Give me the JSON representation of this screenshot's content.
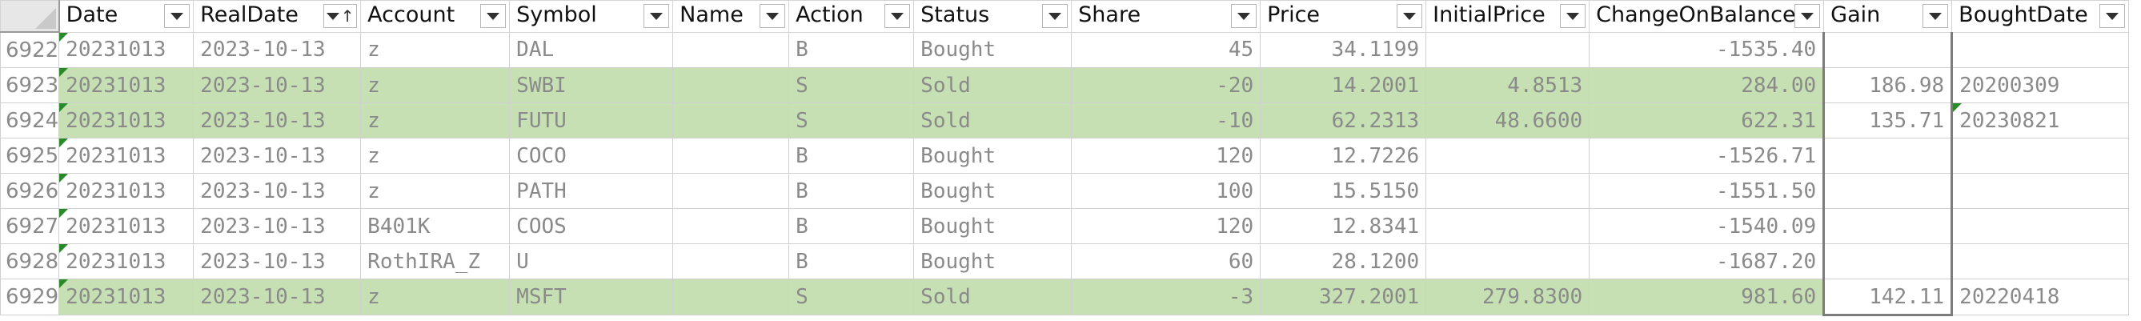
{
  "sheet": {
    "columns": [
      {
        "label": "Date",
        "sorted": false
      },
      {
        "label": "RealDate",
        "sorted": true
      },
      {
        "label": "Account",
        "sorted": false
      },
      {
        "label": "Symbol",
        "sorted": false
      },
      {
        "label": "Name",
        "sorted": false
      },
      {
        "label": "Action",
        "sorted": false
      },
      {
        "label": "Status",
        "sorted": false
      },
      {
        "label": "Share",
        "sorted": false
      },
      {
        "label": "Price",
        "sorted": false
      },
      {
        "label": "InitialPrice",
        "sorted": false
      },
      {
        "label": "ChangeOnBalance",
        "sorted": false
      },
      {
        "label": "Gain",
        "sorted": false
      },
      {
        "label": "BoughtDate",
        "sorted": false
      }
    ],
    "rows": [
      {
        "num": "6922",
        "type": "bought",
        "cells": [
          "20231013",
          "2023-10-13",
          "z",
          "DAL",
          "",
          "B",
          "Bought",
          "45",
          "34.1199",
          "",
          "-1535.40",
          "",
          ""
        ]
      },
      {
        "num": "6923",
        "type": "sold",
        "cells": [
          "20231013",
          "2023-10-13",
          "z",
          "SWBI",
          "",
          "S",
          "Sold",
          "-20",
          "14.2001",
          "4.8513",
          "284.00",
          "186.98",
          "20200309"
        ]
      },
      {
        "num": "6924",
        "type": "sold",
        "cells": [
          "20231013",
          "2023-10-13",
          "z",
          "FUTU",
          "",
          "S",
          "Sold",
          "-10",
          "62.2313",
          "48.6600",
          "622.31",
          "135.71",
          "20230821"
        ]
      },
      {
        "num": "6925",
        "type": "bought",
        "cells": [
          "20231013",
          "2023-10-13",
          "z",
          "COCO",
          "",
          "B",
          "Bought",
          "120",
          "12.7226",
          "",
          "-1526.71",
          "",
          ""
        ]
      },
      {
        "num": "6926",
        "type": "bought",
        "cells": [
          "20231013",
          "2023-10-13",
          "z",
          "PATH",
          "",
          "B",
          "Bought",
          "100",
          "15.5150",
          "",
          "-1551.50",
          "",
          ""
        ]
      },
      {
        "num": "6927",
        "type": "bought",
        "cells": [
          "20231013",
          "2023-10-13",
          "B401K",
          "COOS",
          "",
          "B",
          "Bought",
          "120",
          "12.8341",
          "",
          "-1540.09",
          "",
          ""
        ]
      },
      {
        "num": "6928",
        "type": "bought",
        "cells": [
          "20231013",
          "2023-10-13",
          "RothIRA_Z",
          "U",
          "",
          "B",
          "Bought",
          "60",
          "28.1200",
          "",
          "-1687.20",
          "",
          ""
        ]
      },
      {
        "num": "6929",
        "type": "sold",
        "cells": [
          "20231013",
          "2023-10-13",
          "z",
          "MSFT",
          "",
          "S",
          "Sold",
          "-3",
          "327.2001",
          "279.8300",
          "981.60",
          "142.11",
          "20220418"
        ]
      }
    ]
  }
}
